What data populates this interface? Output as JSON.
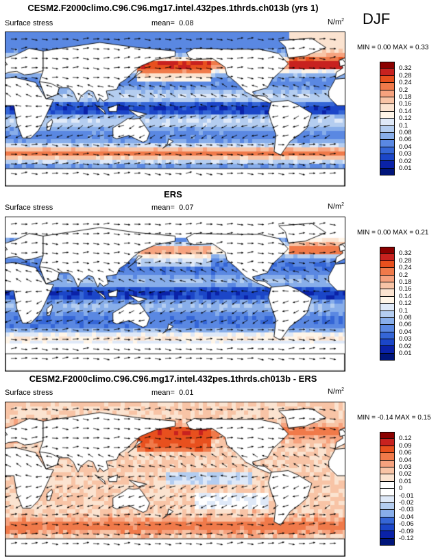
{
  "season": "DJF",
  "panels": [
    {
      "title": "CESM2.F2000climo.C96.C96.mg17.intel.432pes.1thrds.ch013b (yrs 1)",
      "variable": "Surface stress",
      "mean_label": "mean=",
      "mean": "0.08",
      "units_base": "N/m",
      "units_exp": "2",
      "min_max": "MIN =   0.00 MAX =   0.33",
      "levels": [
        "0.32",
        "0.28",
        "0.24",
        "0.2",
        "0.18",
        "0.16",
        "0.14",
        "0.12",
        "0.1",
        "0.08",
        "0.06",
        "0.04",
        "0.03",
        "0.02",
        "0.01"
      ],
      "colors": [
        "#8b0000",
        "#c8221f",
        "#e8501e",
        "#f07a4a",
        "#f6a27e",
        "#f8c4a6",
        "#fbe3d0",
        "#fff5e8",
        "#dfe9f8",
        "#b4cdf0",
        "#88aeea",
        "#5a88e2",
        "#3566d6",
        "#1b46c8",
        "#0a22a8",
        "#00157a"
      ],
      "field": "model"
    },
    {
      "title": "ERS",
      "variable": "Surface stress",
      "mean_label": "mean=",
      "mean": "0.07",
      "units_base": "N/m",
      "units_exp": "2",
      "min_max": "MIN =   0.00 MAX =   0.21",
      "levels": [
        "0.32",
        "0.28",
        "0.24",
        "0.2",
        "0.18",
        "0.16",
        "0.14",
        "0.12",
        "0.1",
        "0.08",
        "0.06",
        "0.04",
        "0.03",
        "0.02",
        "0.01"
      ],
      "colors": [
        "#8b0000",
        "#c8221f",
        "#e8501e",
        "#f07a4a",
        "#f6a27e",
        "#f8c4a6",
        "#fbe3d0",
        "#fff5e8",
        "#dfe9f8",
        "#b4cdf0",
        "#88aeea",
        "#5a88e2",
        "#3566d6",
        "#1b46c8",
        "#0a22a8",
        "#00157a"
      ],
      "field": "obs"
    },
    {
      "title": "CESM2.F2000climo.C96.C96.mg17.intel.432pes.1thrds.ch013b - ERS",
      "variable": "Surface stress",
      "mean_label": "mean=",
      "mean": "0.01",
      "units_base": "N/m",
      "units_exp": "2",
      "min_max": "MIN =  -0.14 MAX =   0.15",
      "levels": [
        "0.12",
        "0.09",
        "0.06",
        "0.04",
        "0.03",
        "0.02",
        "0.01",
        "0",
        "-0.01",
        "-0.02",
        "-0.03",
        "-0.04",
        "-0.06",
        "-0.09",
        "-0.12"
      ],
      "colors": [
        "#8b0000",
        "#c8221f",
        "#e8501e",
        "#f07a4a",
        "#f6a27e",
        "#f8c4a6",
        "#fbe3d0",
        "#ffffff",
        "#ffffff",
        "#dfe9f8",
        "#b4cdf0",
        "#88aeea",
        "#3566d6",
        "#1b46c8",
        "#0a22a8",
        "#00157a"
      ],
      "field": "diff"
    }
  ]
}
